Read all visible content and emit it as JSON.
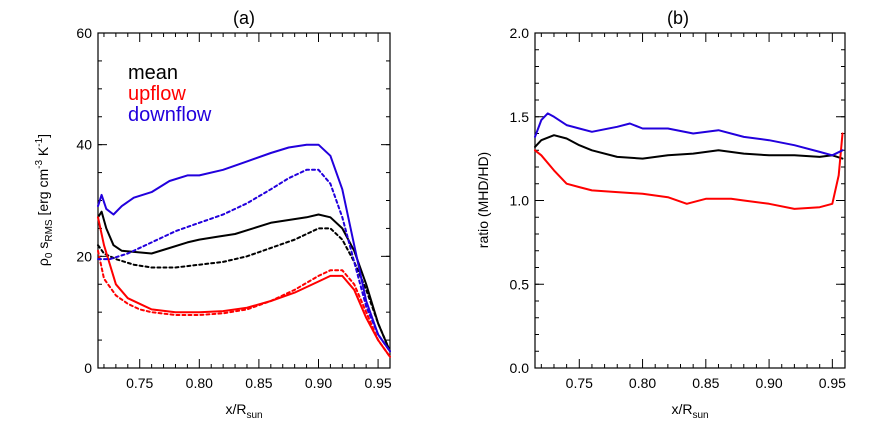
{
  "panels": [
    {
      "title": "(a)",
      "xlabel_main": "x/R",
      "xlabel_sub": "sun",
      "ylabel": {
        "rho": "ρ",
        "rho_sub": "0",
        "s": " s",
        "s_sub": "RMS",
        "units_a": " [erg cm",
        "units_exp1": "-3",
        "units_b": " K",
        "units_exp2": "-1",
        "units_c": "]"
      },
      "x_ticks": [
        "0.75",
        "0.80",
        "0.85",
        "0.90",
        "0.95"
      ],
      "y_ticks": [
        "0",
        "20",
        "40",
        "60"
      ],
      "legend": [
        {
          "label": "mean",
          "color": "#000000"
        },
        {
          "label": "upflow",
          "color": "#ff0000"
        },
        {
          "label": "downflow",
          "color": "#2200dd"
        }
      ]
    },
    {
      "title": "(b)",
      "xlabel_main": "x/R",
      "xlabel_sub": "sun",
      "ylabel": "ratio (MHD/HD)",
      "x_ticks": [
        "0.75",
        "0.80",
        "0.85",
        "0.90",
        "0.95"
      ],
      "y_ticks": [
        "0.0",
        "0.5",
        "1.0",
        "1.5",
        "2.0"
      ]
    }
  ],
  "chart_data": [
    {
      "type": "line",
      "title": "(a)",
      "xlabel": "x/R_sun",
      "ylabel": "ρ0 s_RMS [erg cm^-3 K^-1]",
      "xlim": [
        0.715,
        0.96
      ],
      "ylim": [
        0,
        60
      ],
      "legend_placement": "top-left",
      "series": [
        {
          "name": "mean",
          "style": "solid",
          "color": "#000000",
          "x": [
            0.715,
            0.718,
            0.722,
            0.728,
            0.735,
            0.745,
            0.76,
            0.775,
            0.79,
            0.8,
            0.815,
            0.83,
            0.845,
            0.86,
            0.875,
            0.89,
            0.9,
            0.91,
            0.92,
            0.93,
            0.94,
            0.95,
            0.96
          ],
          "y": [
            27,
            28,
            25,
            22,
            21,
            20.8,
            20.5,
            21.5,
            22.5,
            23,
            23.5,
            24,
            25,
            26,
            26.5,
            27,
            27.5,
            27,
            25,
            21,
            15,
            8,
            3
          ]
        },
        {
          "name": "mean (HD)",
          "style": "dotted",
          "color": "#000000",
          "x": [
            0.715,
            0.72,
            0.73,
            0.745,
            0.76,
            0.78,
            0.8,
            0.82,
            0.84,
            0.86,
            0.88,
            0.9,
            0.91,
            0.92,
            0.93,
            0.94,
            0.95,
            0.96
          ],
          "y": [
            22,
            20.5,
            19.5,
            18.5,
            18,
            18,
            18.5,
            19,
            20,
            21.5,
            23,
            25,
            25,
            23,
            19,
            14,
            8,
            3
          ]
        },
        {
          "name": "upflow",
          "style": "solid",
          "color": "#ff0000",
          "x": [
            0.715,
            0.72,
            0.73,
            0.74,
            0.75,
            0.76,
            0.78,
            0.8,
            0.82,
            0.84,
            0.86,
            0.88,
            0.9,
            0.91,
            0.92,
            0.93,
            0.94,
            0.95,
            0.96
          ],
          "y": [
            27,
            22,
            15,
            12.5,
            11.5,
            10.5,
            10,
            10,
            10.2,
            10.8,
            12,
            13.5,
            15.5,
            16.5,
            16.5,
            14,
            9,
            5,
            2
          ]
        },
        {
          "name": "upflow (HD)",
          "style": "dotted",
          "color": "#ff0000",
          "x": [
            0.715,
            0.72,
            0.73,
            0.74,
            0.75,
            0.76,
            0.78,
            0.8,
            0.82,
            0.84,
            0.86,
            0.88,
            0.9,
            0.91,
            0.92,
            0.93,
            0.94,
            0.95,
            0.96
          ],
          "y": [
            21,
            16,
            13,
            11.5,
            10.5,
            10,
            9.5,
            9.5,
            9.8,
            10.5,
            12,
            14,
            16.5,
            17.5,
            17.5,
            15,
            10,
            5,
            2
          ]
        },
        {
          "name": "downflow",
          "style": "solid",
          "color": "#2200dd",
          "x": [
            0.715,
            0.718,
            0.722,
            0.728,
            0.735,
            0.745,
            0.76,
            0.775,
            0.79,
            0.8,
            0.82,
            0.84,
            0.86,
            0.875,
            0.89,
            0.9,
            0.91,
            0.92,
            0.93,
            0.94,
            0.95,
            0.96
          ],
          "y": [
            29,
            31,
            28.5,
            27.5,
            29,
            30.5,
            31.5,
            33.5,
            34.5,
            34.5,
            35.5,
            37,
            38.5,
            39.5,
            40,
            40,
            38,
            32,
            22,
            12,
            6,
            3
          ]
        },
        {
          "name": "downflow (HD)",
          "style": "dotted",
          "color": "#2200dd",
          "x": [
            0.715,
            0.725,
            0.74,
            0.76,
            0.78,
            0.8,
            0.82,
            0.84,
            0.86,
            0.875,
            0.89,
            0.9,
            0.91,
            0.92,
            0.93,
            0.94,
            0.95,
            0.96
          ],
          "y": [
            19.5,
            19.5,
            20.5,
            22.5,
            24.5,
            26,
            27.5,
            29.5,
            32,
            34,
            35.5,
            35.5,
            33,
            27,
            19,
            11,
            6,
            3
          ]
        }
      ]
    },
    {
      "type": "line",
      "title": "(b)",
      "xlabel": "x/R_sun",
      "ylabel": "ratio (MHD/HD)",
      "xlim": [
        0.715,
        0.96
      ],
      "ylim": [
        0,
        2
      ],
      "series": [
        {
          "name": "mean",
          "style": "solid",
          "color": "#000000",
          "x": [
            0.715,
            0.72,
            0.73,
            0.74,
            0.75,
            0.76,
            0.78,
            0.8,
            0.82,
            0.84,
            0.86,
            0.88,
            0.9,
            0.92,
            0.94,
            0.95,
            0.958
          ],
          "y": [
            1.32,
            1.36,
            1.39,
            1.37,
            1.33,
            1.3,
            1.26,
            1.25,
            1.27,
            1.28,
            1.3,
            1.28,
            1.27,
            1.27,
            1.26,
            1.27,
            1.25
          ]
        },
        {
          "name": "upflow",
          "style": "solid",
          "color": "#ff0000",
          "x": [
            0.715,
            0.72,
            0.73,
            0.74,
            0.75,
            0.76,
            0.78,
            0.8,
            0.82,
            0.835,
            0.85,
            0.87,
            0.88,
            0.9,
            0.92,
            0.94,
            0.95,
            0.955,
            0.958
          ],
          "y": [
            1.3,
            1.27,
            1.18,
            1.1,
            1.08,
            1.06,
            1.05,
            1.04,
            1.02,
            0.98,
            1.01,
            1.01,
            1.0,
            0.98,
            0.95,
            0.96,
            0.98,
            1.15,
            1.4
          ]
        },
        {
          "name": "downflow",
          "style": "solid",
          "color": "#2200dd",
          "x": [
            0.715,
            0.72,
            0.725,
            0.73,
            0.74,
            0.75,
            0.76,
            0.78,
            0.79,
            0.8,
            0.82,
            0.84,
            0.86,
            0.88,
            0.9,
            0.92,
            0.94,
            0.95,
            0.958
          ],
          "y": [
            1.38,
            1.48,
            1.52,
            1.5,
            1.45,
            1.43,
            1.41,
            1.44,
            1.46,
            1.43,
            1.43,
            1.4,
            1.42,
            1.38,
            1.36,
            1.33,
            1.29,
            1.27,
            1.3
          ]
        }
      ]
    }
  ]
}
